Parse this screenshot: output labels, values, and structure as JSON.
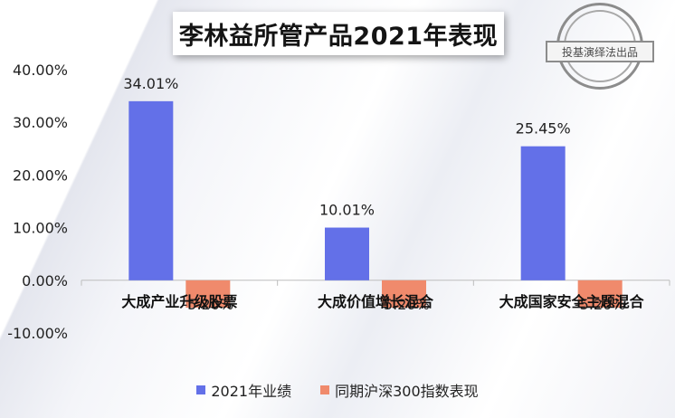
{
  "title": "李林益所管产品2021年表现",
  "stamp_text": "投基演绎法出品",
  "chart_data": {
    "type": "bar",
    "categories": [
      "大成产业升级股票",
      "大成价值增长混合",
      "大成国家安全主题混合"
    ],
    "series": [
      {
        "name": "2021年业绩",
        "color": "#6370e8",
        "values": [
          34.01,
          10.01,
          25.45
        ],
        "labels": [
          "34.01%",
          "10.01%",
          "25.45%"
        ]
      },
      {
        "name": "同期沪深300指数表现",
        "color": "#f08a6c",
        "values": [
          -5.2,
          -5.2,
          -5.2
        ],
        "labels": [
          "-5.20%",
          "-5.20%",
          "-5.20%"
        ]
      }
    ],
    "ylim": [
      -10,
      40
    ],
    "yticks": [
      40,
      30,
      20,
      10,
      0,
      -10
    ],
    "ytick_labels": [
      "40.00%",
      "30.00%",
      "20.00%",
      "10.00%",
      "0.00%",
      "-10.00%"
    ],
    "xlabel": "",
    "ylabel": "",
    "legend_position": "bottom"
  }
}
